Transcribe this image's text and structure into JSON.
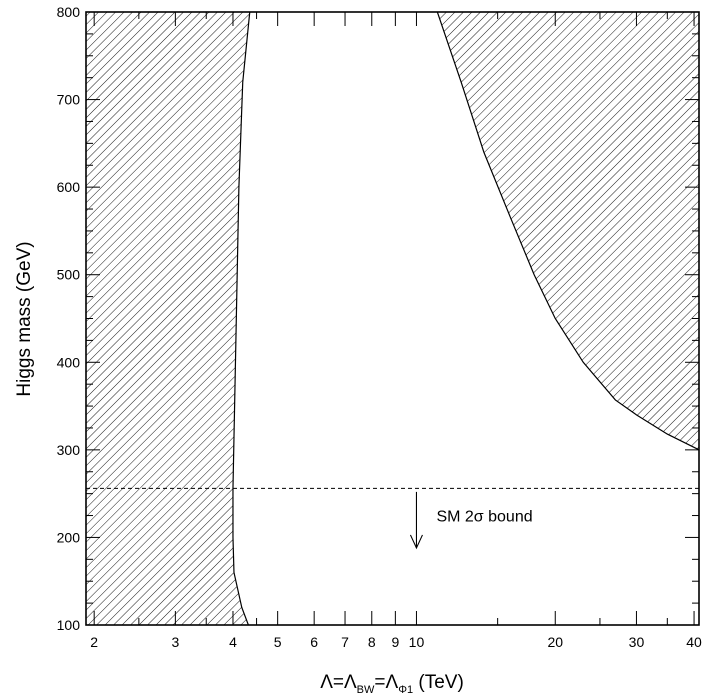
{
  "chart_data": {
    "type": "area",
    "title": "",
    "xscale": "log",
    "xlim": [
      1.92,
      41
    ],
    "ylim": [
      100,
      800
    ],
    "x_ticks_labeled": [
      "2",
      "3",
      "4",
      "5",
      "6",
      "7",
      "8",
      "9",
      "10",
      "20",
      "30",
      "40"
    ],
    "x_tick_values": [
      2,
      3,
      4,
      5,
      6,
      7,
      8,
      9,
      10,
      20,
      30,
      40
    ],
    "x_minor_ticks": [
      2.5,
      3.5,
      4.5,
      15,
      25,
      35
    ],
    "y_ticks_labeled": [
      "100",
      "200",
      "300",
      "400",
      "500",
      "600",
      "700",
      "800"
    ],
    "y_tick_values": [
      100,
      200,
      300,
      400,
      500,
      600,
      700,
      800
    ],
    "xlabel": {
      "prefix": "Λ=Λ",
      "sub1": "BW",
      "mid": "=Λ",
      "sub2": "Φ1",
      "suffix": " (TeV)"
    },
    "ylabel": "Higgs mass (GeV)",
    "excluded_regions": [
      {
        "name": "left",
        "hatch": "diagonal-down",
        "boundary": [
          [
            4.35,
            800
          ],
          [
            4.2,
            720
          ],
          [
            4.12,
            600
          ],
          [
            4.05,
            400
          ],
          [
            4.0,
            256
          ],
          [
            4.0,
            200
          ],
          [
            4.02,
            160
          ],
          [
            4.18,
            120
          ],
          [
            4.32,
            100
          ]
        ]
      },
      {
        "name": "right",
        "hatch": "diagonal-down",
        "boundary": [
          [
            11.1,
            800
          ],
          [
            12.5,
            720
          ],
          [
            14,
            640
          ],
          [
            16,
            565
          ],
          [
            18,
            500
          ],
          [
            20,
            450
          ],
          [
            23,
            400
          ],
          [
            27,
            357
          ],
          [
            30,
            340
          ],
          [
            35,
            318
          ],
          [
            41,
            300
          ]
        ]
      }
    ],
    "bound_line": {
      "y": 256,
      "style": "dashed"
    },
    "annotation": {
      "text": "SM 2σ bound",
      "arrow_x": 10,
      "arrow_from": 252,
      "arrow_to": 188,
      "direction": "down"
    }
  }
}
